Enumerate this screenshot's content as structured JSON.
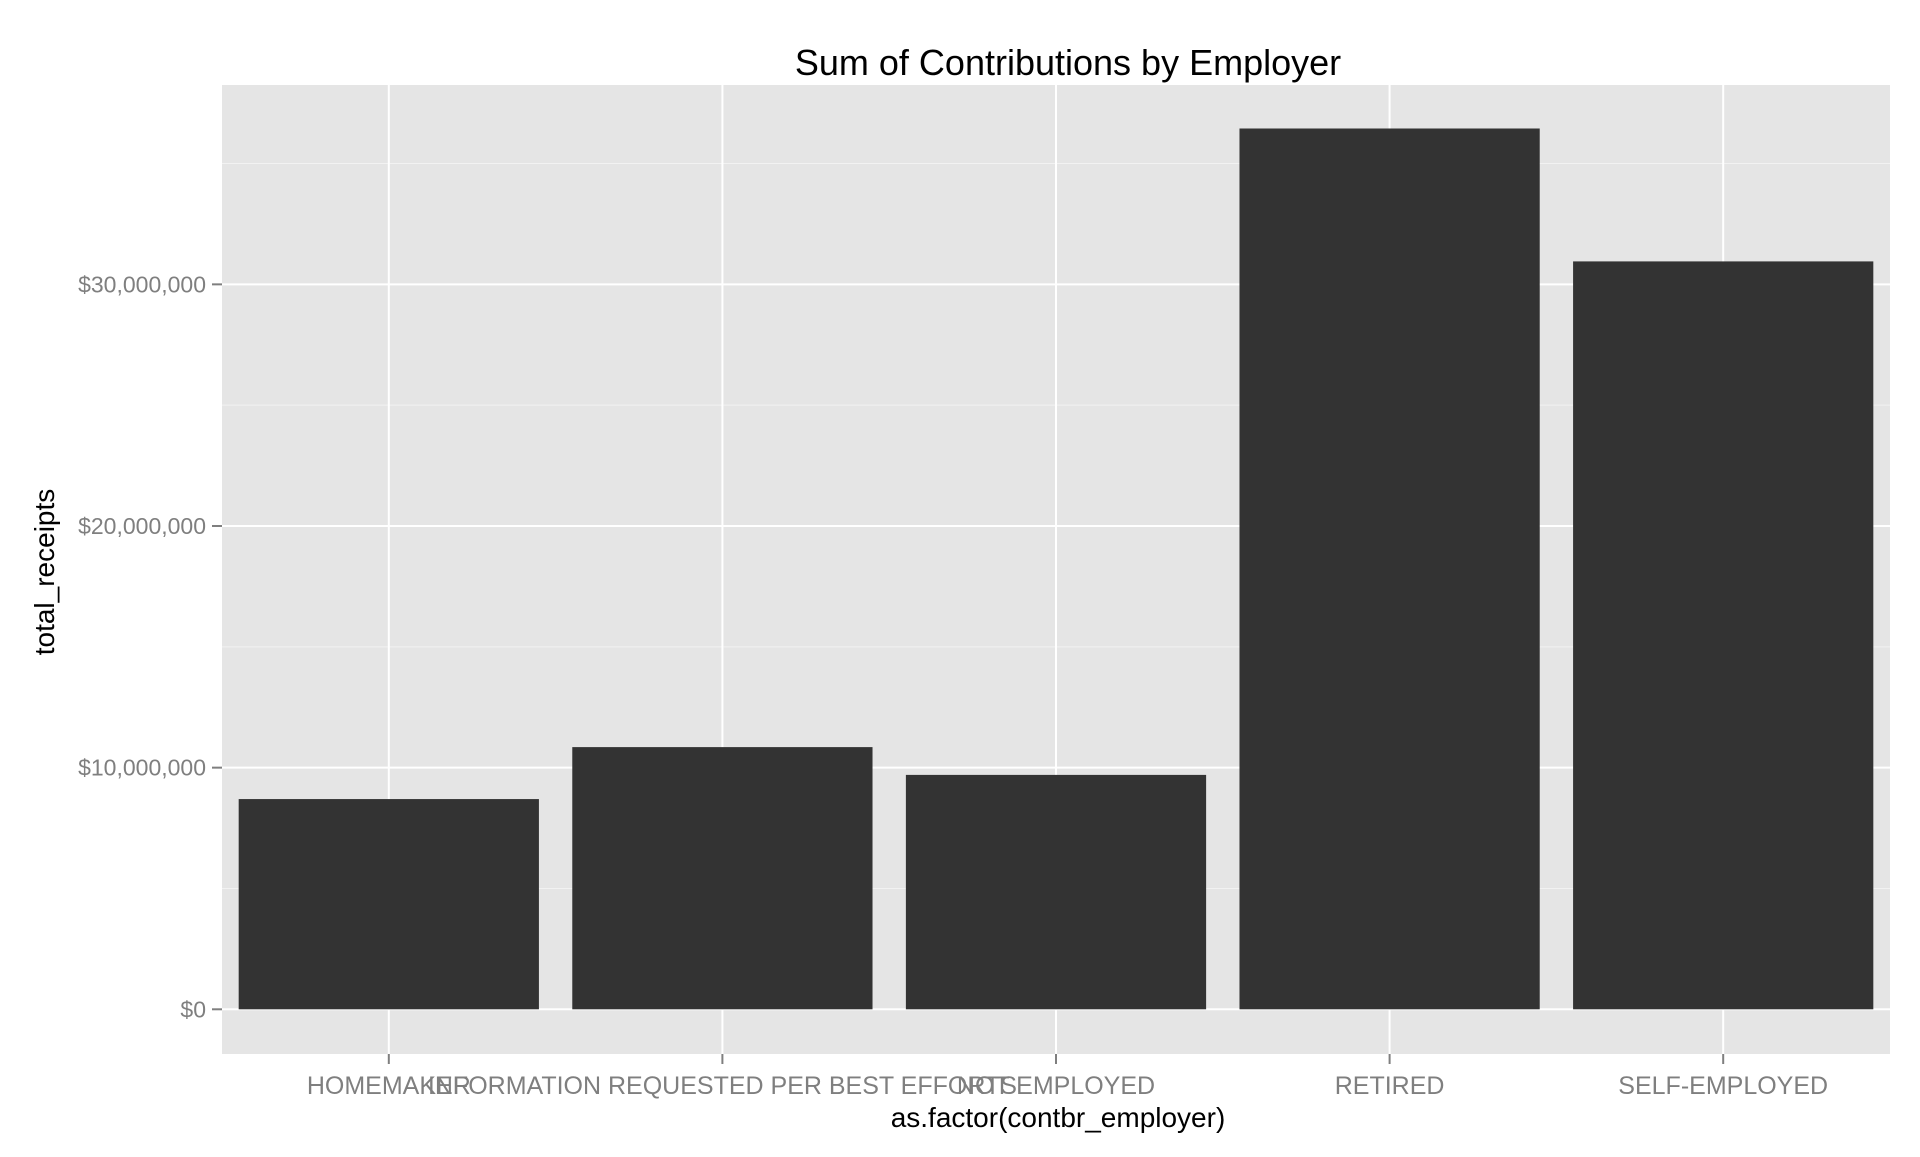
{
  "chart_data": {
    "type": "bar",
    "title": "Sum of Contributions by Employer",
    "xlabel": "as.factor(contbr_employer)",
    "ylabel": "total_receipts",
    "categories": [
      "HOMEMAKER",
      "INFORMATION REQUESTED PER BEST EFFORTS",
      "NOT EMPLOYED",
      "RETIRED",
      "SELF-EMPLOYED"
    ],
    "values": [
      8700000,
      10850000,
      9700000,
      36450000,
      30950000
    ],
    "ylim": [
      -1850000,
      38250000
    ],
    "yticks": [
      0,
      10000000,
      20000000,
      30000000
    ],
    "ytick_labels": [
      "$0",
      "$10,000,000",
      "$20,000,000",
      "$30,000,000"
    ],
    "grid": true,
    "legend": "none",
    "colors": {
      "panel": "#e5e5e5",
      "grid_major": "#ffffff",
      "grid_minor": "#f2f2f2",
      "bar": "#333333",
      "tick_text": "#7f7f7f",
      "title_text": "#000000"
    }
  }
}
